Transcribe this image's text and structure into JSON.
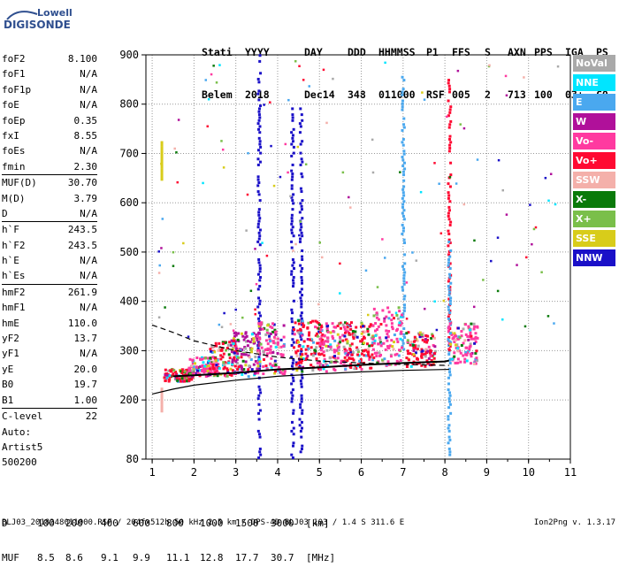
{
  "logo": {
    "line1": "Lowell",
    "line2": "DIGISONDE"
  },
  "header": {
    "labels": [
      "Stati",
      "YYYY",
      "DAY",
      "DDD",
      "HHMMSS",
      "P1",
      "FFS",
      "S",
      "AXN",
      "PPS",
      "IGA",
      "PS"
    ],
    "values": [
      "Belem",
      "2018",
      "Dec14",
      "348",
      "011000",
      "RSF",
      "005",
      "2",
      "713",
      "100",
      "03+",
      "C0"
    ]
  },
  "params_group1": [
    {
      "k": "foF2",
      "v": "8.100"
    },
    {
      "k": "foF1",
      "v": "N/A"
    },
    {
      "k": "foF1p",
      "v": "N/A"
    },
    {
      "k": "foE",
      "v": "N/A"
    },
    {
      "k": "foEp",
      "v": "0.35"
    },
    {
      "k": "fxI",
      "v": "8.55"
    },
    {
      "k": "foEs",
      "v": "N/A"
    },
    {
      "k": "fmin",
      "v": "2.30"
    }
  ],
  "params_group2": [
    {
      "k": "MUF(D)",
      "v": "30.70"
    },
    {
      "k": "M(D)",
      "v": "3.79"
    },
    {
      "k": "D",
      "v": "N/A"
    }
  ],
  "params_group3": [
    {
      "k": "h`F",
      "v": "243.5"
    },
    {
      "k": "h`F2",
      "v": "243.5"
    },
    {
      "k": "h`E",
      "v": "N/A"
    },
    {
      "k": "h`Es",
      "v": "N/A"
    }
  ],
  "params_group4": [
    {
      "k": "hmF2",
      "v": "261.9"
    },
    {
      "k": "hmF1",
      "v": "N/A"
    },
    {
      "k": "hmE",
      "v": "110.0"
    },
    {
      "k": "yF2",
      "v": "13.7"
    },
    {
      "k": "yF1",
      "v": "N/A"
    },
    {
      "k": "yE",
      "v": "20.0"
    },
    {
      "k": "B0",
      "v": "19.7"
    },
    {
      "k": "B1",
      "v": "1.00"
    }
  ],
  "params_group5": [
    {
      "k": "C-level",
      "v": "22"
    }
  ],
  "auto": {
    "line1": "Auto:",
    "line2": "Artist5",
    "line3": "500200"
  },
  "legend": [
    {
      "label": "NoVal",
      "color": "#a9a9a9"
    },
    {
      "label": "NNE",
      "color": "#00e5ff"
    },
    {
      "label": "E",
      "color": "#4aa8ef"
    },
    {
      "label": "W",
      "color": "#b0109a"
    },
    {
      "label": "Vo-",
      "color": "#ff3aa0"
    },
    {
      "label": "Vo+",
      "color": "#ff0a32"
    },
    {
      "label": "SSW",
      "color": "#f4b0aa"
    },
    {
      "label": "X-",
      "color": "#0a7a0a"
    },
    {
      "label": "X+",
      "color": "#7abf4a"
    },
    {
      "label": "SSE",
      "color": "#d8cc1a"
    },
    {
      "label": "NNW",
      "color": "#1a10c8"
    }
  ],
  "dmuf": {
    "d_label": "D",
    "d_values": [
      "100",
      "200",
      "400",
      "600",
      "800",
      "1000",
      "1500",
      "3000"
    ],
    "d_unit": "[km]",
    "muf_label": "MUF",
    "muf_values": [
      "8.5",
      "8.6",
      "9.1",
      "9.9",
      "11.1",
      "12.8",
      "17.7",
      "30.7"
    ],
    "muf_unit": "[MHz]"
  },
  "footer": "BLJ03_2018348011000.RSF / 204fx512h 50 kHz 2.5 km / DPS-4D BLJ03 103 / 1.4 S 311.6 E",
  "version": "Ion2Png v. 1.3.17",
  "chart_data": {
    "type": "scatter",
    "title": "",
    "xlabel": "",
    "ylabel": "",
    "xlim": [
      0.85,
      11
    ],
    "ylim": [
      80,
      900
    ],
    "x_ticks": [
      "1",
      "2",
      "3",
      "4",
      "5",
      "6",
      "7",
      "8",
      "9",
      "10",
      "11"
    ],
    "y_ticks": [
      "900",
      "800",
      "700",
      "600",
      "500",
      "400",
      "300",
      "200",
      "80"
    ],
    "grid": true,
    "legend_position": "right",
    "traces": {
      "virtual_height_curve": {
        "x": [
          1.0,
          1.5,
          2.0,
          3.0,
          4.0,
          5.0,
          6.0,
          7.0,
          8.1
        ],
        "y": [
          212,
          222,
          230,
          240,
          248,
          253,
          257,
          260,
          262
        ]
      },
      "dashed_curve": {
        "x": [
          1.0,
          1.5,
          2.0,
          3.0,
          4.0,
          5.0,
          6.0,
          7.0,
          8.1
        ],
        "y": [
          352,
          337,
          320,
          300,
          287,
          279,
          275,
          272,
          270
        ]
      },
      "f2_trace": {
        "x": [
          1.5,
          2.0,
          3.0,
          4.0,
          5.0,
          6.0,
          7.0,
          8.0,
          8.1
        ],
        "y": [
          248,
          250,
          255,
          262,
          266,
          271,
          275,
          278,
          280
        ]
      }
    },
    "clusters": [
      {
        "x": 1.6,
        "y_min": 240,
        "y_max": 265,
        "color": "#ff0a32"
      },
      {
        "x": 2.2,
        "y_min": 250,
        "y_max": 290,
        "color": "#ff3aa0"
      },
      {
        "x": 2.7,
        "y_min": 250,
        "y_max": 320,
        "color": "#ff0a32"
      },
      {
        "x": 3.2,
        "y_min": 250,
        "y_max": 340,
        "color": "#b0109a"
      },
      {
        "x": 3.8,
        "y_min": 255,
        "y_max": 360,
        "color": "#ff3aa0"
      },
      {
        "x": 4.7,
        "y_min": 260,
        "y_max": 370,
        "color": "#ff0a32"
      },
      {
        "x": 5.3,
        "y_min": 260,
        "y_max": 360,
        "color": "#ff3aa0"
      },
      {
        "x": 5.9,
        "y_min": 265,
        "y_max": 360,
        "color": "#ff0a32"
      },
      {
        "x": 6.6,
        "y_min": 270,
        "y_max": 390,
        "color": "#ff3aa0"
      },
      {
        "x": 7.4,
        "y_min": 270,
        "y_max": 340,
        "color": "#ff0a32"
      },
      {
        "x": 8.4,
        "y_min": 275,
        "y_max": 360,
        "color": "#ff3aa0"
      }
    ],
    "vertical_streaks": [
      {
        "x": 3.55,
        "y_min": 80,
        "y_max": 900,
        "color": "#1a10c8"
      },
      {
        "x": 4.35,
        "y_min": 80,
        "y_max": 790,
        "color": "#1a10c8"
      },
      {
        "x": 4.55,
        "y_min": 80,
        "y_max": 790,
        "color": "#1a10c8"
      },
      {
        "x": 7.0,
        "y_min": 300,
        "y_max": 860,
        "color": "#4aa8ef"
      },
      {
        "x": 8.1,
        "y_min": 300,
        "y_max": 850,
        "color": "#ff0a32"
      },
      {
        "x": 8.1,
        "y_min": 80,
        "y_max": 520,
        "color": "#4aa8ef"
      }
    ]
  }
}
